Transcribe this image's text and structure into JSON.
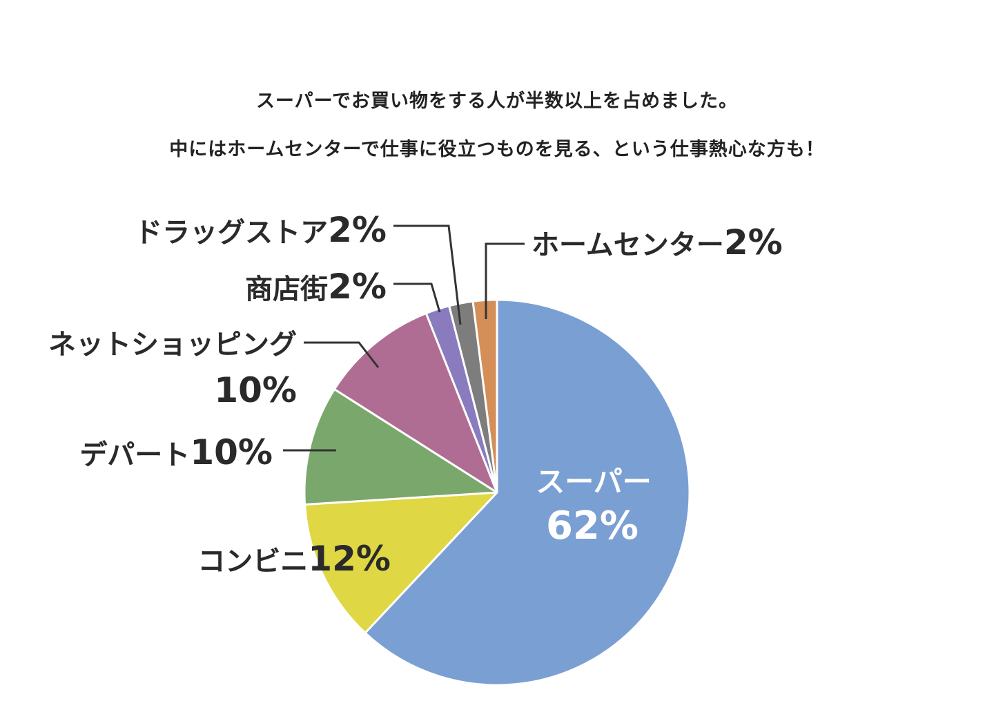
{
  "caption": {
    "line1": "スーパーでお買い物をする人が半数以上を占めました。",
    "line2": "中にはホームセンターで仕事に役立つものを見る、という仕事熱心な方も！"
  },
  "chart_data": {
    "type": "pie",
    "title": "",
    "start": "12 o'clock",
    "direction": "clockwise",
    "slices": [
      {
        "label": "スーパー",
        "value": 62,
        "value_text": "62%",
        "color": "#7a9fd3"
      },
      {
        "label": "コンビニ",
        "value": 12,
        "value_text": "12%",
        "color": "#dfd743"
      },
      {
        "label": "デパート",
        "value": 10,
        "value_text": "10%",
        "color": "#7aa86c"
      },
      {
        "label": "ネットショッピング",
        "value": 10,
        "value_text": "10%",
        "color": "#b06d93"
      },
      {
        "label": "商店街",
        "value": 2,
        "value_text": "2%",
        "color": "#8a7bbf"
      },
      {
        "label": "ドラッグストア",
        "value": 2,
        "value_text": "2%",
        "color": "#7d7d7d"
      },
      {
        "label": "ホームセンター",
        "value": 2,
        "value_text": "2%",
        "color": "#d48f59"
      }
    ]
  }
}
